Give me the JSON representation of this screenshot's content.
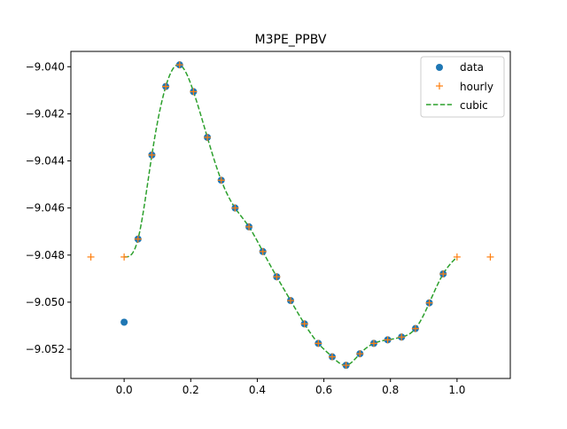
{
  "chart_data": {
    "type": "scatter",
    "title": "M3PE_PPBV",
    "xlabel": "",
    "ylabel": "",
    "xlim": [
      -0.16,
      1.16
    ],
    "ylim": [
      -9.05324,
      -9.03935
    ],
    "xticks": [
      0.0,
      0.2,
      0.4,
      0.6,
      0.8,
      1.0
    ],
    "xtick_labels": [
      "0.0",
      "0.2",
      "0.4",
      "0.6",
      "0.8",
      "1.0"
    ],
    "yticks": [
      -9.04,
      -9.042,
      -9.044,
      -9.046,
      -9.048,
      -9.05,
      -9.052
    ],
    "ytick_labels": [
      "−9.040",
      "−9.042",
      "−9.044",
      "−9.046",
      "−9.048",
      "−9.050",
      "−9.052"
    ],
    "grid": false,
    "legend_position": "upper right",
    "series": [
      {
        "name": "data",
        "style": "markers",
        "marker": "circle",
        "color": "#1f77b4",
        "x": [
          0.0,
          0.04167,
          0.08333,
          0.125,
          0.16667,
          0.20833,
          0.25,
          0.29167,
          0.33333,
          0.375,
          0.41667,
          0.45833,
          0.5,
          0.54167,
          0.58333,
          0.625,
          0.66667,
          0.70833,
          0.75,
          0.79167,
          0.83333,
          0.875,
          0.91667,
          0.95833
        ],
        "y": [
          -9.05085,
          -9.04732,
          -9.04375,
          -9.04084,
          -9.03992,
          -9.04106,
          -9.043,
          -9.04482,
          -9.046,
          -9.0468,
          -9.04785,
          -9.04892,
          -9.04993,
          -9.05092,
          -9.05175,
          -9.05232,
          -9.05268,
          -9.05219,
          -9.05175,
          -9.0516,
          -9.05148,
          -9.05112,
          -9.05003,
          -9.0488
        ]
      },
      {
        "name": "hourly",
        "style": "markers",
        "marker": "plus",
        "color": "#ff7f0e",
        "x": [
          -0.1,
          0.0,
          0.04167,
          0.08333,
          0.125,
          0.16667,
          0.20833,
          0.25,
          0.29167,
          0.33333,
          0.375,
          0.41667,
          0.45833,
          0.5,
          0.54167,
          0.58333,
          0.625,
          0.66667,
          0.70833,
          0.75,
          0.79167,
          0.83333,
          0.875,
          0.91667,
          0.95833,
          1.0,
          1.1
        ],
        "y": [
          -9.04808,
          -9.04808,
          -9.04732,
          -9.04375,
          -9.04084,
          -9.03992,
          -9.04106,
          -9.043,
          -9.04482,
          -9.046,
          -9.0468,
          -9.04785,
          -9.04892,
          -9.04993,
          -9.05092,
          -9.05175,
          -9.05232,
          -9.05268,
          -9.05219,
          -9.05175,
          -9.0516,
          -9.05148,
          -9.05112,
          -9.05003,
          -9.0488,
          -9.04808,
          -9.04808
        ]
      },
      {
        "name": "cubic",
        "style": "dashed-line",
        "color": "#2ca02c",
        "x": [
          0.0,
          0.04167,
          0.08333,
          0.125,
          0.16667,
          0.20833,
          0.25,
          0.29167,
          0.33333,
          0.375,
          0.41667,
          0.45833,
          0.5,
          0.54167,
          0.58333,
          0.625,
          0.66667,
          0.70833,
          0.75,
          0.79167,
          0.83333,
          0.875,
          0.91667,
          0.95833,
          1.0
        ],
        "y": [
          -9.04808,
          -9.04732,
          -9.04375,
          -9.04084,
          -9.03992,
          -9.04106,
          -9.043,
          -9.04482,
          -9.046,
          -9.0468,
          -9.04785,
          -9.04892,
          -9.04993,
          -9.05092,
          -9.05175,
          -9.05232,
          -9.05268,
          -9.05219,
          -9.05175,
          -9.0516,
          -9.05148,
          -9.05112,
          -9.05003,
          -9.0488,
          -9.04808
        ]
      }
    ]
  }
}
